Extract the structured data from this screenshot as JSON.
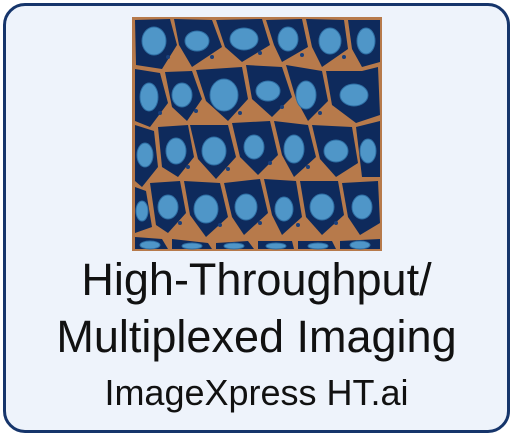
{
  "tile": {
    "image_name": "cell-tissue-image",
    "title_line1": "High-Throughput/",
    "title_line2": "Multiplexed Imaging",
    "product": "ImageXpress HT.ai"
  },
  "colors": {
    "border": "#16356b",
    "background": "#eef3fb",
    "membrane": "#b77a4b",
    "cytoplasm": "#0e2a5c",
    "nucleus": "#4f96c8",
    "text": "#111111"
  }
}
